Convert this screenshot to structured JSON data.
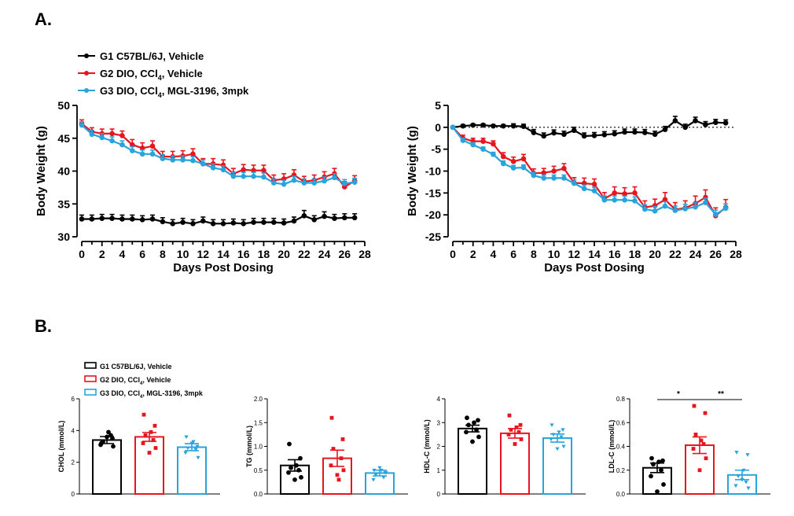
{
  "panel_labels": {
    "a": "A.",
    "b": "B."
  },
  "colors": {
    "g1": "#000000",
    "g2": "#e8141e",
    "g3": "#29a3dc"
  },
  "legend_a": [
    {
      "key": "g1",
      "text": "G1 C57BL/6J, Vehicle"
    },
    {
      "key": "g2",
      "text": "G2 DIO, CCl",
      "sub": "4",
      "text2": ", Vehicle"
    },
    {
      "key": "g3",
      "text": "G3 DIO, CCl",
      "sub": "4",
      "text2": ", MGL-3196, 3mpk"
    }
  ],
  "legend_b": [
    {
      "key": "g1",
      "text": "G1 C57BL/6J, Vehicle"
    },
    {
      "key": "g2",
      "text": "G2 DIO, CCl",
      "sub": "4",
      "text2": ", Vehicle"
    },
    {
      "key": "g3",
      "text": "G3 DIO, CCl",
      "sub": "4",
      "text2": ", MGL-3196, 3mpk"
    }
  ],
  "chart_data": [
    {
      "id": "body_weight",
      "type": "line",
      "xlabel": "Days Post Dosing",
      "ylabel": "Body Weight (g)",
      "xlim": [
        0,
        28
      ],
      "xticks": [
        0,
        2,
        4,
        6,
        8,
        10,
        12,
        14,
        16,
        18,
        20,
        22,
        24,
        26,
        28
      ],
      "ylim": [
        30,
        50
      ],
      "yticks": [
        30,
        35,
        40,
        45,
        50
      ],
      "x": [
        0,
        1,
        2,
        3,
        4,
        5,
        6,
        7,
        8,
        9,
        10,
        11,
        12,
        13,
        14,
        15,
        16,
        17,
        18,
        19,
        20,
        21,
        22,
        23,
        24,
        25,
        26,
        27
      ],
      "series": [
        {
          "name": "G1 C57BL/6J, Vehicle",
          "key": "g1",
          "values": [
            32.7,
            32.7,
            32.8,
            32.8,
            32.7,
            32.7,
            32.6,
            32.7,
            32.3,
            32.0,
            32.2,
            32.0,
            32.4,
            32.0,
            32.0,
            32.1,
            32.0,
            32.2,
            32.2,
            32.2,
            32.1,
            32.4,
            33.2,
            32.6,
            33.1,
            32.8,
            32.9,
            32.9
          ],
          "err": [
            0.6,
            0.6,
            0.6,
            0.6,
            0.6,
            0.6,
            0.6,
            0.6,
            0.6,
            0.6,
            0.6,
            0.6,
            0.6,
            0.6,
            0.6,
            0.6,
            0.6,
            0.6,
            0.6,
            0.6,
            0.6,
            0.6,
            0.8,
            0.6,
            0.7,
            0.6,
            0.6,
            0.6
          ]
        },
        {
          "name": "G2 DIO, CCl4, Vehicle",
          "key": "g2",
          "values": [
            47.2,
            46.0,
            45.7,
            45.7,
            45.4,
            44.0,
            43.5,
            43.8,
            42.2,
            42.2,
            42.3,
            42.6,
            41.1,
            41.1,
            40.9,
            39.6,
            40.2,
            40.1,
            40.1,
            38.6,
            38.8,
            39.4,
            38.4,
            38.6,
            39.1,
            39.6,
            37.6,
            38.5
          ],
          "err": [
            0.6,
            0.6,
            0.7,
            0.7,
            0.7,
            0.8,
            0.8,
            0.8,
            0.8,
            0.8,
            0.8,
            0.8,
            0.8,
            0.8,
            0.8,
            0.8,
            0.8,
            0.8,
            0.8,
            0.8,
            0.8,
            0.8,
            0.8,
            0.8,
            0.8,
            0.8,
            0.8,
            0.8
          ]
        },
        {
          "name": "G3 DIO, CCl4, MGL-3196, 3mpk",
          "key": "g3",
          "values": [
            47.0,
            45.6,
            45.1,
            44.6,
            44.0,
            43.1,
            42.6,
            42.6,
            41.9,
            41.7,
            41.7,
            41.6,
            41.1,
            40.5,
            40.2,
            39.2,
            39.2,
            39.2,
            39.1,
            38.2,
            38.0,
            38.6,
            38.2,
            38.2,
            38.5,
            39.0,
            38.1,
            38.3
          ],
          "err": [
            0.5,
            0.6,
            0.6,
            0.6,
            0.6,
            0.6,
            0.6,
            0.6,
            0.6,
            0.6,
            0.6,
            0.6,
            0.6,
            0.6,
            0.6,
            0.6,
            0.6,
            0.6,
            0.6,
            0.6,
            0.6,
            0.6,
            0.6,
            0.6,
            0.6,
            0.6,
            0.6,
            0.6
          ]
        }
      ]
    },
    {
      "id": "body_weight_change",
      "type": "line",
      "xlabel": "Days Post Dosing",
      "ylabel": "Body Weight (g)",
      "xlim": [
        0,
        28
      ],
      "xticks": [
        0,
        2,
        4,
        6,
        8,
        10,
        12,
        14,
        16,
        18,
        20,
        22,
        24,
        26,
        28
      ],
      "ylim": [
        -25,
        5
      ],
      "yticks": [
        -25,
        -20,
        -15,
        -10,
        -5,
        0,
        5
      ],
      "reference_line": 0,
      "x": [
        0,
        1,
        2,
        3,
        4,
        5,
        6,
        7,
        8,
        9,
        10,
        11,
        12,
        13,
        14,
        15,
        16,
        17,
        18,
        19,
        20,
        21,
        22,
        23,
        24,
        25,
        26,
        27
      ],
      "series": [
        {
          "name": "G1 C57BL/6J, Vehicle",
          "key": "g1",
          "values": [
            0.0,
            0.3,
            0.5,
            0.5,
            0.3,
            0.3,
            0.3,
            0.2,
            -1.2,
            -2.0,
            -1.3,
            -1.6,
            -0.7,
            -2.0,
            -1.9,
            -1.7,
            -1.5,
            -1.1,
            -1.1,
            -1.2,
            -1.6,
            -0.5,
            1.5,
            0.0,
            1.5,
            0.6,
            1.1,
            1.0
          ],
          "err": [
            0.1,
            0.3,
            0.3,
            0.3,
            0.3,
            0.3,
            0.5,
            0.5,
            0.7,
            0.7,
            0.7,
            0.7,
            0.7,
            0.7,
            0.7,
            0.7,
            0.7,
            0.7,
            0.7,
            0.7,
            0.7,
            0.7,
            1.0,
            0.7,
            0.8,
            0.7,
            0.7,
            0.7
          ]
        },
        {
          "name": "G2 DIO, CCl4, Vehicle",
          "key": "g2",
          "values": [
            0.0,
            -2.5,
            -3.2,
            -3.2,
            -3.8,
            -6.7,
            -7.8,
            -7.2,
            -10.5,
            -10.4,
            -10.0,
            -9.4,
            -12.7,
            -12.8,
            -13.0,
            -16.3,
            -15.0,
            -15.2,
            -15.0,
            -18.3,
            -17.9,
            -16.5,
            -18.8,
            -18.4,
            -17.4,
            -16.0,
            -20.2,
            -18.3
          ],
          "err": [
            0.1,
            0.7,
            0.7,
            0.7,
            0.7,
            0.9,
            1.0,
            1.0,
            1.0,
            1.0,
            1.1,
            1.1,
            1.2,
            1.2,
            1.2,
            1.4,
            1.4,
            1.4,
            1.4,
            1.5,
            1.5,
            1.6,
            1.6,
            1.6,
            1.7,
            1.7,
            1.8,
            1.8
          ]
        },
        {
          "name": "G3 DIO, CCl4, MGL-3196, 3mpk",
          "key": "g3",
          "values": [
            0.0,
            -3.0,
            -4.0,
            -5.0,
            -6.2,
            -8.3,
            -9.3,
            -9.2,
            -11.0,
            -11.6,
            -11.6,
            -11.6,
            -12.8,
            -14.0,
            -14.5,
            -16.6,
            -16.6,
            -16.6,
            -16.8,
            -18.7,
            -19.1,
            -18.0,
            -19.0,
            -18.6,
            -18.2,
            -17.2,
            -19.9,
            -18.5
          ],
          "err": [
            0.1,
            0.5,
            0.5,
            0.5,
            0.5,
            0.6,
            0.6,
            0.6,
            0.7,
            0.7,
            0.7,
            0.7,
            0.8,
            0.8,
            0.8,
            0.9,
            0.9,
            0.9,
            0.9,
            1.0,
            1.0,
            1.0,
            1.0,
            1.0,
            1.0,
            1.0,
            1.0,
            1.0
          ]
        }
      ]
    },
    {
      "id": "chol",
      "type": "bar",
      "ylabel": "CHOL  (mmol/L)",
      "ylim": [
        0,
        6
      ],
      "yticks": [
        0,
        2,
        4,
        6
      ],
      "tick_labels": [
        "0",
        "2",
        "4",
        "6"
      ],
      "categories": [
        "G1 C57BL/6J, Vehicle",
        "G2 DIO, CCl4, Vehicle",
        "G3 DIO, CCl4, MGL-3196, 3mpk"
      ],
      "keys": [
        "g1",
        "g2",
        "g3"
      ],
      "values": [
        3.4,
        3.6,
        2.95
      ],
      "err": [
        0.22,
        0.28,
        0.22
      ],
      "points": [
        [
          3.2,
          3.5,
          3.3,
          3.7,
          3.1,
          3.0,
          3.6,
          3.9
        ],
        [
          5.0,
          4.3,
          3.7,
          3.4,
          3.2,
          2.9,
          2.6,
          3.9
        ],
        [
          3.6,
          3.0,
          2.9,
          2.8,
          2.6,
          2.3,
          3.2,
          3.3
        ]
      ],
      "markers": [
        "circle",
        "square",
        "triangle"
      ]
    },
    {
      "id": "tg",
      "type": "bar",
      "ylabel": "TG  (mmol/L)",
      "ylim": [
        0,
        2.0
      ],
      "yticks": [
        0,
        0.5,
        1.0,
        1.5,
        2.0
      ],
      "tick_labels": [
        "0.0",
        "0.5",
        "1.0",
        "1.5",
        "2.0"
      ],
      "categories": [
        "G1 C57BL/6J, Vehicle",
        "G2 DIO, CCl4, Vehicle",
        "G3 DIO, CCl4, MGL-3196, 3mpk"
      ],
      "keys": [
        "g1",
        "g2",
        "g3"
      ],
      "values": [
        0.6,
        0.75,
        0.44
      ],
      "err": [
        0.12,
        0.17,
        0.06
      ],
      "points": [
        [
          1.05,
          0.75,
          0.55,
          0.5,
          0.45,
          0.35,
          0.3,
          0.6
        ],
        [
          1.6,
          1.15,
          0.95,
          0.75,
          0.6,
          0.5,
          0.4,
          0.3
        ],
        [
          0.5,
          0.45,
          0.4,
          0.35,
          0.3,
          0.45,
          0.55,
          0.5
        ]
      ],
      "markers": [
        "circle",
        "square",
        "triangle"
      ]
    },
    {
      "id": "hdl",
      "type": "bar",
      "ylabel": "HDL-C (mmol/L)",
      "ylim": [
        0,
        4
      ],
      "yticks": [
        0,
        1,
        2,
        3,
        4
      ],
      "tick_labels": [
        "0",
        "1",
        "2",
        "3",
        "4"
      ],
      "categories": [
        "G1 C57BL/6J, Vehicle",
        "G2 DIO, CCl4, Vehicle",
        "G3 DIO, CCl4, MGL-3196, 3mpk"
      ],
      "keys": [
        "g1",
        "g2",
        "g3"
      ],
      "values": [
        2.75,
        2.55,
        2.35
      ],
      "err": [
        0.14,
        0.2,
        0.17
      ],
      "points": [
        [
          3.2,
          3.1,
          2.9,
          2.7,
          2.6,
          2.4,
          2.2,
          3.0
        ],
        [
          3.3,
          2.9,
          2.7,
          2.6,
          2.5,
          2.3,
          2.1,
          2.8
        ],
        [
          2.9,
          2.7,
          2.5,
          2.4,
          2.3,
          2.0,
          1.9,
          2.6
        ]
      ],
      "markers": [
        "circle",
        "square",
        "triangle"
      ]
    },
    {
      "id": "ldl",
      "type": "bar",
      "ylabel": "LDL-C (mmol/L)",
      "ylim": [
        0,
        0.8
      ],
      "yticks": [
        0,
        0.2,
        0.4,
        0.6,
        0.8
      ],
      "tick_labels": [
        "0.0",
        "0.2",
        "0.4",
        "0.6",
        "0.8"
      ],
      "categories": [
        "G1 C57BL/6J, Vehicle",
        "G2 DIO, CCl4, Vehicle",
        "G3 DIO, CCl4, MGL-3196, 3mpk"
      ],
      "keys": [
        "g1",
        "g2",
        "g3"
      ],
      "values": [
        0.22,
        0.41,
        0.16
      ],
      "err": [
        0.04,
        0.07,
        0.04
      ],
      "points": [
        [
          0.3,
          0.28,
          0.25,
          0.2,
          0.15,
          0.08,
          0.02,
          0.27
        ],
        [
          0.74,
          0.68,
          0.5,
          0.42,
          0.38,
          0.3,
          0.2,
          0.45
        ],
        [
          0.35,
          0.33,
          0.15,
          0.1,
          0.07,
          0.05,
          0.12,
          0.2
        ]
      ],
      "markers": [
        "circle",
        "square",
        "triangle"
      ],
      "significance": [
        {
          "from": 0,
          "to": 1,
          "label": "*"
        },
        {
          "from": 1,
          "to": 2,
          "label": "**"
        }
      ]
    }
  ]
}
